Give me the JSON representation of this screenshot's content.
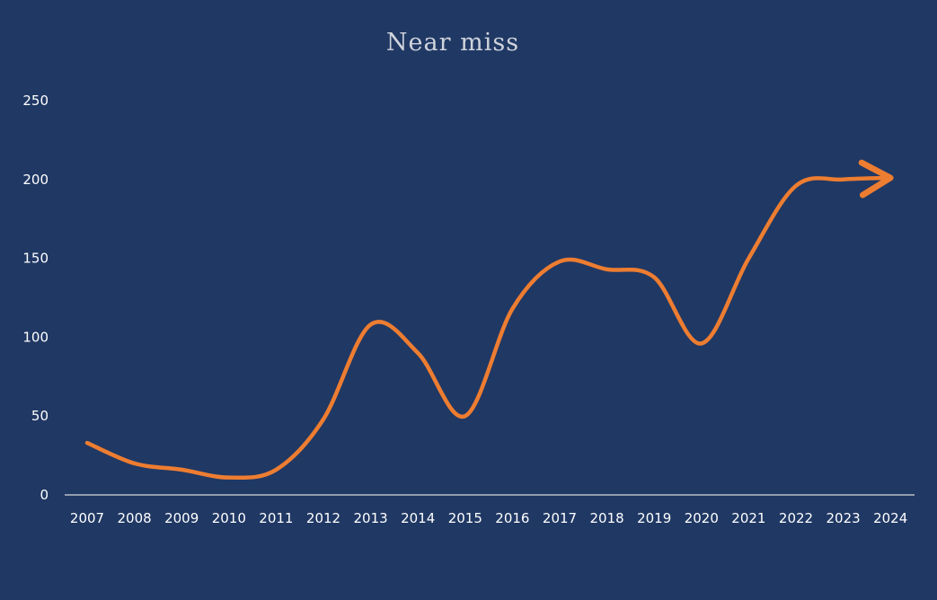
{
  "chart_data": {
    "type": "line",
    "title": "Near miss",
    "xlabel": "",
    "ylabel": "",
    "categories": [
      "2007",
      "2008",
      "2009",
      "2010",
      "2011",
      "2012",
      "2013",
      "2014",
      "2015",
      "2016",
      "2017",
      "2018",
      "2019",
      "2020",
      "2021",
      "2022",
      "2023",
      "2024"
    ],
    "series": [
      {
        "values": [
          33,
          20,
          16,
          11,
          16,
          48,
          108,
          90,
          50,
          118,
          148,
          143,
          138,
          96,
          150,
          196,
          200,
          201
        ]
      }
    ],
    "ylim": [
      0,
      250
    ],
    "yticks": [
      0,
      50,
      100,
      150,
      200,
      250
    ],
    "grid": false,
    "legend": "none",
    "end_marker": "arrow",
    "colors": {
      "background": "#203864",
      "line": "#ED7D31",
      "axis": "#d9d9d9",
      "text": "#ffffff",
      "title": "#cfd3db"
    }
  }
}
